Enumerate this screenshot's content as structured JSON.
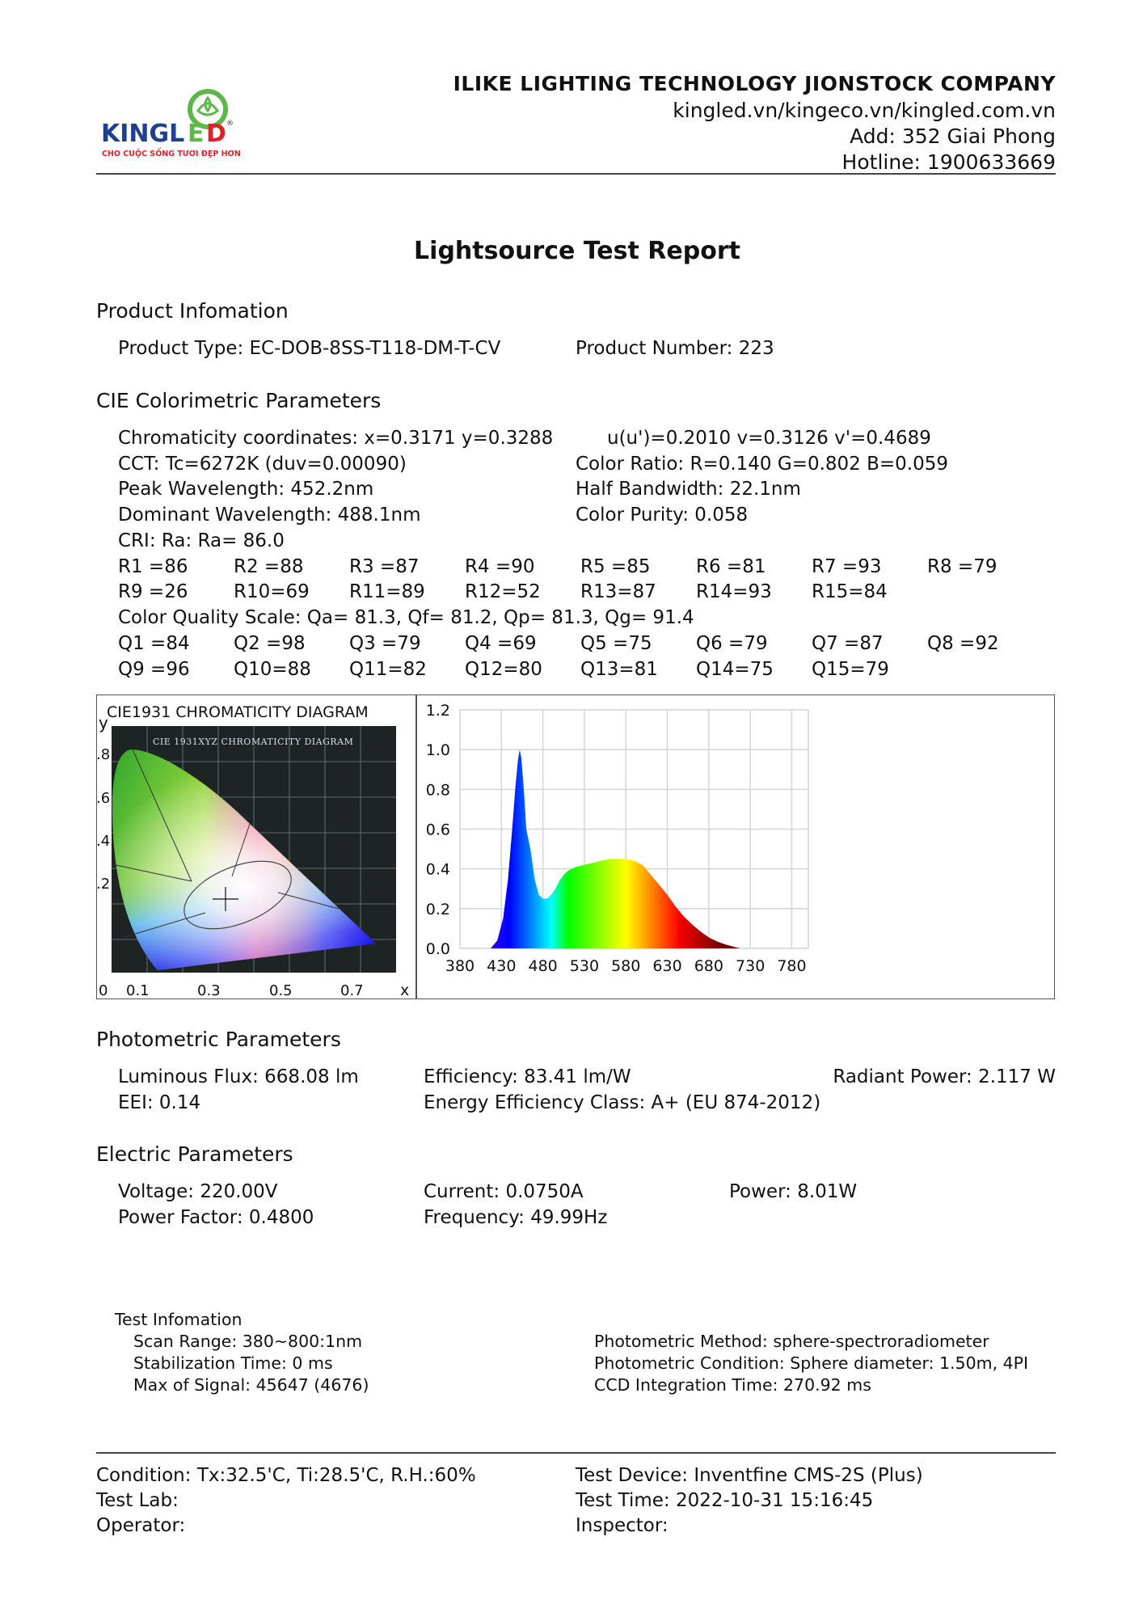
{
  "header": {
    "logo_text": "KINGLED",
    "logo_tagline": "CHO CUỘC SỐNG TƯƠI ĐẸP HƠN",
    "company": "ILIKE LIGHTING TECHNOLOGY JIONSTOCK COMPANY",
    "websites": "kingled.vn/kingeco.vn/kingled.com.vn",
    "address": "Add: 352 Giai Phong",
    "hotline": "Hotline: 1900633669",
    "colors": {
      "brand_blue": "#1f3f8f",
      "brand_red": "#d8232a",
      "brand_green": "#5cb84a"
    }
  },
  "title": "Lightsource Test Report",
  "product": {
    "heading": "Product Infomation",
    "type": "Product Type: EC-DOB-8SS-T118-DM-T-CV",
    "number": "Product Number: 223"
  },
  "cie": {
    "heading": "CIE Colorimetric Parameters",
    "chromaticity": "Chromaticity coordinates: x=0.3171 y=0.3288",
    "uv": "u(u')=0.2010 v=0.3126 v'=0.4689",
    "cct": "CCT: Tc=6272K (duv=0.00090)",
    "color_ratio": "Color Ratio: R=0.140  G=0.802  B=0.059",
    "peak": "Peak Wavelength: 452.2nm",
    "half_bandwidth": "Half Bandwidth: 22.1nm",
    "dominant": "Dominant Wavelength: 488.1nm",
    "purity": "Color Purity: 0.058",
    "cri": "CRI: Ra: Ra= 86.0",
    "r_row1": [
      "R1 =86",
      "R2 =88",
      "R3 =87",
      "R4 =90",
      "R5 =85",
      "R6 =81",
      "R7 =93",
      "R8 =79"
    ],
    "r_row2": [
      "R9 =26",
      "R10=69",
      "R11=89",
      "R12=52",
      "R13=87",
      "R14=93",
      "R15=84"
    ],
    "cqs": "Color Quality Scale: Qa= 81.3, Qf= 81.2, Qp= 81.3, Qg= 91.4",
    "q_row1": [
      "Q1 =84",
      "Q2 =98",
      "Q3 =79",
      "Q4 =69",
      "Q5 =75",
      "Q6 =79",
      "Q7 =87",
      "Q8 =92"
    ],
    "q_row2": [
      "Q9 =96",
      "Q10=88",
      "Q11=82",
      "Q12=80",
      "Q13=81",
      "Q14=75",
      "Q15=79"
    ]
  },
  "cie_diagram": {
    "title": "CIE1931 CHROMATICITY DIAGRAM",
    "inner_title": "CIE 1931XYZ CHROMATICITY DIAGRAM",
    "y_label": "y",
    "x_label": "x",
    "y_ticks": [
      ".8",
      ".6",
      ".4",
      ".2"
    ],
    "x_ticks": [
      "0",
      "0.1",
      "0.3",
      "0.5",
      "0.7"
    ],
    "point": {
      "x": 0.3171,
      "y": 0.3288
    }
  },
  "chart_data": {
    "type": "area",
    "xlabel": "",
    "ylabel": "",
    "xlim": [
      380,
      800
    ],
    "ylim": [
      0,
      1.2
    ],
    "grid": true,
    "x_ticks": [
      "380",
      "430",
      "480",
      "530",
      "580",
      "630",
      "680",
      "730",
      "780"
    ],
    "y_ticks": [
      "0.0",
      "0.2",
      "0.4",
      "0.6",
      "0.8",
      "1.0",
      "1.2"
    ],
    "x": [
      417,
      425,
      432,
      438,
      443,
      447,
      450,
      452,
      454,
      457,
      460,
      465,
      470,
      475,
      480,
      485,
      490,
      495,
      500,
      505,
      510,
      520,
      530,
      540,
      550,
      560,
      570,
      580,
      590,
      600,
      610,
      620,
      630,
      640,
      650,
      660,
      670,
      680,
      690,
      700,
      710,
      718
    ],
    "y": [
      0,
      0.04,
      0.15,
      0.35,
      0.6,
      0.82,
      0.95,
      1.0,
      0.96,
      0.8,
      0.6,
      0.5,
      0.35,
      0.27,
      0.25,
      0.25,
      0.27,
      0.3,
      0.34,
      0.37,
      0.39,
      0.41,
      0.42,
      0.43,
      0.44,
      0.45,
      0.45,
      0.45,
      0.44,
      0.42,
      0.37,
      0.32,
      0.27,
      0.21,
      0.16,
      0.12,
      0.085,
      0.055,
      0.035,
      0.02,
      0.008,
      0
    ]
  },
  "photometric": {
    "heading": "Photometric Parameters",
    "flux": "Luminous Flux: 668.08 lm",
    "efficiency": "Efficiency: 83.41 lm/W",
    "radiant": "Radiant Power: 2.117 W",
    "eei": "EEI:  0.14",
    "energy_class": "Energy Efficiency Class: A+ (EU 874-2012)"
  },
  "electric": {
    "heading": "Electric Parameters",
    "voltage": "Voltage: 220.00V",
    "current": "Current: 0.0750A",
    "power": "Power: 8.01W",
    "pf": "Power Factor: 0.4800",
    "frequency": "Frequency: 49.99Hz"
  },
  "test_info": {
    "heading": "Test Infomation",
    "scan": "Scan Range: 380~800:1nm",
    "stabilization": "Stabilization Time: 0 ms",
    "max_signal": "Max of Signal: 45647 (4676)",
    "method": "Photometric Method: sphere-spectroradiometer",
    "condition": "Photometric Condition: Sphere diameter: 1.50m, 4PI",
    "ccd": "CCD Integration Time: 270.92 ms"
  },
  "footer": {
    "condition": "Condition: Tx:32.5'C, Ti:28.5'C, R.H.:60%",
    "device": "Test Device: Inventfine CMS-2S (Plus)",
    "lab": "Test Lab:",
    "time": "Test Time: 2022-10-31 15:16:45",
    "operator": "Operator:",
    "inspector": "Inspector:"
  }
}
